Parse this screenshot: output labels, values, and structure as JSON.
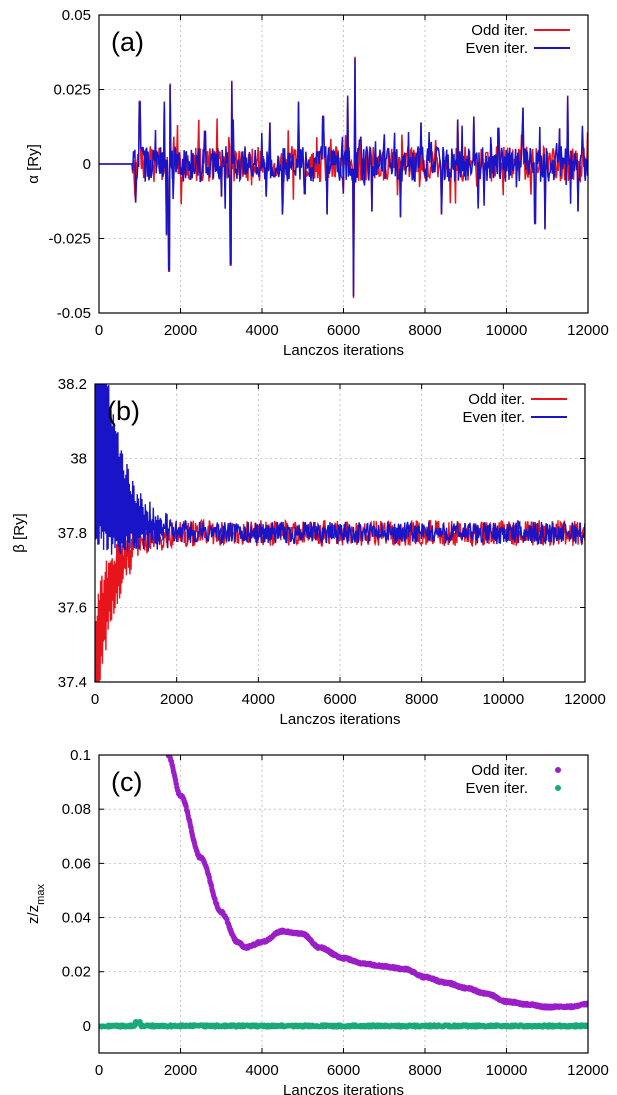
{
  "chart_data": [
    {
      "type": "line",
      "panel_label": "(a)",
      "xlabel": "Lanczos iterations",
      "ylabel": "α [Ry]",
      "xlim": [
        0,
        12000
      ],
      "ylim": [
        -0.05,
        0.05
      ],
      "x_ticks": [
        "0",
        "2000",
        "4000",
        "6000",
        "8000",
        "10000",
        "12000"
      ],
      "y_ticks": [
        "-0.05",
        "-0.025",
        "0",
        "0.025",
        "0.05"
      ],
      "grid": true,
      "legend_position": "top-right",
      "series": [
        {
          "name": "Odd iter.",
          "color": "#e8141b"
        },
        {
          "name": "Even iter.",
          "color": "#1a14c8"
        }
      ],
      "spikes": [
        [
          900,
          -0.013
        ],
        [
          1000,
          0.021
        ],
        [
          1600,
          0.021
        ],
        [
          1650,
          -0.024
        ],
        [
          1720,
          -0.036
        ],
        [
          1750,
          0.027
        ],
        [
          2600,
          0.011
        ],
        [
          3000,
          -0.011
        ],
        [
          3250,
          0.028
        ],
        [
          3230,
          -0.034
        ],
        [
          3300,
          0.015
        ],
        [
          4100,
          -0.011
        ],
        [
          4200,
          0.014
        ],
        [
          4500,
          -0.017
        ],
        [
          4900,
          0.021
        ],
        [
          5050,
          -0.01
        ],
        [
          5500,
          0.016
        ],
        [
          5600,
          -0.017
        ],
        [
          6000,
          -0.01
        ],
        [
          6100,
          0.023
        ],
        [
          6250,
          -0.045
        ],
        [
          6280,
          0.036
        ],
        [
          6400,
          0.008
        ],
        [
          6700,
          -0.016
        ],
        [
          7000,
          0.01
        ],
        [
          7400,
          -0.018
        ],
        [
          7900,
          0.014
        ],
        [
          8400,
          -0.017
        ],
        [
          8800,
          0.015
        ],
        [
          9200,
          0.016
        ],
        [
          9300,
          -0.015
        ],
        [
          9800,
          0.012
        ],
        [
          10400,
          0.019
        ],
        [
          10700,
          -0.02
        ],
        [
          10950,
          -0.022
        ],
        [
          11300,
          0.012
        ],
        [
          11500,
          0.023
        ],
        [
          11750,
          -0.016
        ]
      ]
    },
    {
      "type": "line",
      "panel_label": "(b)",
      "xlabel": "Lanczos iterations",
      "ylabel": "β [Ry]",
      "xlim": [
        0,
        12000
      ],
      "ylim": [
        37.4,
        38.2
      ],
      "x_ticks": [
        "0",
        "2000",
        "4000",
        "6000",
        "8000",
        "10000",
        "12000"
      ],
      "y_ticks": [
        "37.4",
        "37.6",
        "37.8",
        "38",
        "38.2"
      ],
      "grid": true,
      "legend_position": "top-right",
      "converged_value": 37.8,
      "series": [
        {
          "name": "Odd iter.",
          "color": "#e8141b",
          "early_offset": -0.4,
          "late_noise": 0.035
        },
        {
          "name": "Even iter.",
          "color": "#1a14c8",
          "early_offset": 0.4,
          "late_noise": 0.03
        }
      ]
    },
    {
      "type": "scatter",
      "panel_label": "(c)",
      "xlabel": "Lanczos iterations",
      "ylabel": "z/z",
      "ylabel_sub": "max",
      "xlim": [
        0,
        12000
      ],
      "ylim": [
        -0.01,
        0.1
      ],
      "x_ticks": [
        "0",
        "2000",
        "4000",
        "6000",
        "8000",
        "10000",
        "12000"
      ],
      "y_ticks": [
        "0",
        "0.02",
        "0.04",
        "0.06",
        "0.08",
        "0.1"
      ],
      "grid": true,
      "legend_position": "top-right",
      "series": [
        {
          "name": "Odd iter.",
          "color": "#9b1fc8",
          "points": [
            [
              1700,
              0.1
            ],
            [
              2000,
              0.085
            ],
            [
              2500,
              0.062
            ],
            [
              3000,
              0.042
            ],
            [
              3400,
              0.031
            ],
            [
              3600,
              0.029
            ],
            [
              4000,
              0.031
            ],
            [
              4500,
              0.035
            ],
            [
              5000,
              0.034
            ],
            [
              5400,
              0.029
            ],
            [
              6000,
              0.025
            ],
            [
              6500,
              0.023
            ],
            [
              7000,
              0.022
            ],
            [
              7500,
              0.021
            ],
            [
              8000,
              0.018
            ],
            [
              8500,
              0.016
            ],
            [
              9000,
              0.014
            ],
            [
              9500,
              0.012
            ],
            [
              10000,
              0.009
            ],
            [
              10500,
              0.008
            ],
            [
              11000,
              0.007
            ],
            [
              11500,
              0.007
            ],
            [
              12000,
              0.008
            ]
          ]
        },
        {
          "name": "Even iter.",
          "color": "#1aa97a",
          "points": [
            [
              0,
              0
            ],
            [
              900,
              0.0012
            ],
            [
              1000,
              0.0004
            ],
            [
              12000,
              0
            ]
          ]
        }
      ]
    }
  ]
}
